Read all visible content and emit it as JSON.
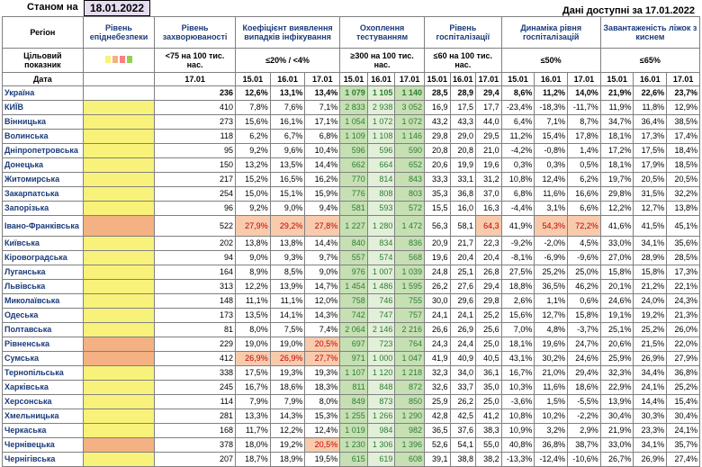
{
  "header": {
    "as_of_label": "Станом на",
    "as_of_date": "18.01.2022",
    "available_label": "Дані доступні за",
    "available_date": "17.01.2022"
  },
  "columns": {
    "region": "Регіон",
    "level": "Рівень епіднебезпеки",
    "incidence": "Рівень захворюваності",
    "positivity": "Коефіцієнт виявлення випадків інфікування",
    "testing": "Охоплення тестуванням",
    "hosp": "Рівень госпіталізації",
    "hosp_dyn": "Динаміка рівня госпіталізацій",
    "oxygen": "Завантаженість ліжок з киснем"
  },
  "targets": {
    "label": "Цільовий показник",
    "incidence": "<75 на 100 тис. нас.",
    "positivity": "≤20% / <4%",
    "testing": "≥300 на 100 тис. нас.",
    "hosp": "≤60 на 100 тис. нас.",
    "hosp_dyn": "≤50%",
    "oxygen": "≤65%"
  },
  "dates": {
    "label": "Дата",
    "incidence": "17.01",
    "d1": "15.01",
    "d2": "16.01",
    "d3": "17.01"
  },
  "legend_colors": [
    "#f8f27a",
    "#f4b183",
    "#ff7f7f",
    "#92d050"
  ],
  "rows": [
    {
      "region": "Україна",
      "level": "",
      "inc": "236",
      "pos": [
        "12,6%",
        "13,1%",
        "13,4%"
      ],
      "test": [
        "1 079",
        "1 105",
        "1 140"
      ],
      "hosp": [
        "28,5",
        "28,9",
        "29,4"
      ],
      "dyn": [
        "8,6%",
        "11,2%",
        "14,0%"
      ],
      "oxy": [
        "21,9%",
        "22,6%",
        "23,7%"
      ]
    },
    {
      "region": "КИЇВ",
      "level": "yellow",
      "inc": "410",
      "pos": [
        "7,8%",
        "7,6%",
        "7,1%"
      ],
      "test": [
        "2 833",
        "2 938",
        "3 052"
      ],
      "hosp": [
        "16,9",
        "17,5",
        "17,7"
      ],
      "dyn": [
        "-23,4%",
        "-18,3%",
        "-11,7%"
      ],
      "oxy": [
        "11,9%",
        "11,8%",
        "12,9%"
      ]
    },
    {
      "region": "Вінницька",
      "level": "yellow",
      "inc": "273",
      "pos": [
        "15,6%",
        "16,1%",
        "17,1%"
      ],
      "test": [
        "1 054",
        "1 072",
        "1 072"
      ],
      "hosp": [
        "43,2",
        "43,3",
        "44,0"
      ],
      "dyn": [
        "6,4%",
        "7,1%",
        "8,7%"
      ],
      "oxy": [
        "34,7%",
        "36,4%",
        "38,5%"
      ]
    },
    {
      "region": "Волинська",
      "level": "yellow",
      "inc": "118",
      "pos": [
        "6,2%",
        "6,7%",
        "6,8%"
      ],
      "test": [
        "1 109",
        "1 108",
        "1 146"
      ],
      "hosp": [
        "29,8",
        "29,0",
        "29,5"
      ],
      "dyn": [
        "11,2%",
        "15,4%",
        "17,8%"
      ],
      "oxy": [
        "18,1%",
        "17,3%",
        "17,4%"
      ]
    },
    {
      "region": "Дніпропетровська",
      "level": "yellow",
      "inc": "95",
      "pos": [
        "9,2%",
        "9,6%",
        "10,4%"
      ],
      "test": [
        "596",
        "596",
        "590"
      ],
      "hosp": [
        "20,8",
        "20,8",
        "21,0"
      ],
      "dyn": [
        "-4,2%",
        "-0,8%",
        "1,4%"
      ],
      "oxy": [
        "17,2%",
        "17,5%",
        "18,4%"
      ]
    },
    {
      "region": "Донецька",
      "level": "yellow",
      "inc": "150",
      "pos": [
        "13,2%",
        "13,5%",
        "14,4%"
      ],
      "test": [
        "662",
        "664",
        "652"
      ],
      "hosp": [
        "20,6",
        "19,9",
        "19,6"
      ],
      "dyn": [
        "0,3%",
        "0,3%",
        "0,5%"
      ],
      "oxy": [
        "18,1%",
        "17,9%",
        "18,5%"
      ]
    },
    {
      "region": "Житомирська",
      "level": "yellow",
      "inc": "217",
      "pos": [
        "15,2%",
        "16,5%",
        "16,2%"
      ],
      "test": [
        "770",
        "814",
        "843"
      ],
      "hosp": [
        "33,3",
        "33,1",
        "31,2"
      ],
      "dyn": [
        "10,8%",
        "12,4%",
        "6,2%"
      ],
      "oxy": [
        "19,7%",
        "20,5%",
        "20,5%"
      ]
    },
    {
      "region": "Закарпатська",
      "level": "yellow",
      "inc": "254",
      "pos": [
        "15,0%",
        "15,1%",
        "15,9%"
      ],
      "test": [
        "776",
        "808",
        "803"
      ],
      "hosp": [
        "35,3",
        "36,8",
        "37,0"
      ],
      "dyn": [
        "6,8%",
        "11,6%",
        "16,6%"
      ],
      "oxy": [
        "29,8%",
        "31,5%",
        "32,2%"
      ]
    },
    {
      "region": "Запорізька",
      "level": "yellow",
      "inc": "96",
      "pos": [
        "9,2%",
        "9,0%",
        "9,4%"
      ],
      "test": [
        "581",
        "593",
        "572"
      ],
      "hosp": [
        "15,5",
        "16,0",
        "16,3"
      ],
      "dyn": [
        "-4,4%",
        "3,1%",
        "6,6%"
      ],
      "oxy": [
        "12,2%",
        "12,7%",
        "13,8%"
      ]
    },
    {
      "region": "Івано-Франківська",
      "level": "orange",
      "inc": "522",
      "pos": [
        "27,9%",
        "29,2%",
        "27,8%"
      ],
      "posHi": [
        true,
        true,
        true
      ],
      "test": [
        "1 227",
        "1 280",
        "1 472"
      ],
      "hosp": [
        "56,3",
        "58,1",
        "64,3"
      ],
      "hospHi": [
        false,
        false,
        true
      ],
      "dyn": [
        "41,9%",
        "54,3%",
        "72,2%"
      ],
      "dynHi": [
        false,
        true,
        true
      ],
      "oxy": [
        "41,6%",
        "41,5%",
        "45,1%"
      ],
      "tall": true
    },
    {
      "region": "Київська",
      "level": "yellow",
      "inc": "202",
      "pos": [
        "13,8%",
        "13,8%",
        "14,4%"
      ],
      "test": [
        "840",
        "834",
        "836"
      ],
      "hosp": [
        "20,9",
        "21,7",
        "22,3"
      ],
      "dyn": [
        "-9,2%",
        "-2,0%",
        "4,5%"
      ],
      "oxy": [
        "33,0%",
        "34,1%",
        "35,6%"
      ]
    },
    {
      "region": "Кіровоградська",
      "level": "yellow",
      "inc": "94",
      "pos": [
        "9,0%",
        "9,3%",
        "9,7%"
      ],
      "test": [
        "557",
        "574",
        "568"
      ],
      "hosp": [
        "19,6",
        "20,4",
        "20,4"
      ],
      "dyn": [
        "-8,1%",
        "-6,9%",
        "-9,6%"
      ],
      "oxy": [
        "27,0%",
        "28,9%",
        "28,5%"
      ]
    },
    {
      "region": "Луганська",
      "level": "yellow",
      "inc": "164",
      "pos": [
        "8,9%",
        "8,5%",
        "9,0%"
      ],
      "test": [
        "976",
        "1 007",
        "1 039"
      ],
      "hosp": [
        "24,8",
        "25,1",
        "26,8"
      ],
      "dyn": [
        "27,5%",
        "25,2%",
        "25,0%"
      ],
      "oxy": [
        "15,8%",
        "15,8%",
        "17,3%"
      ]
    },
    {
      "region": "Львівська",
      "level": "yellow",
      "inc": "313",
      "pos": [
        "12,2%",
        "13,9%",
        "14,7%"
      ],
      "test": [
        "1 454",
        "1 486",
        "1 595"
      ],
      "hosp": [
        "26,2",
        "27,6",
        "29,4"
      ],
      "dyn": [
        "18,8%",
        "36,5%",
        "46,2%"
      ],
      "oxy": [
        "20,1%",
        "21,2%",
        "22,1%"
      ]
    },
    {
      "region": "Миколаївська",
      "level": "yellow",
      "inc": "148",
      "pos": [
        "11,1%",
        "11,1%",
        "12,0%"
      ],
      "test": [
        "758",
        "746",
        "755"
      ],
      "hosp": [
        "30,0",
        "29,6",
        "29,8"
      ],
      "dyn": [
        "2,6%",
        "1,1%",
        "0,6%"
      ],
      "oxy": [
        "24,6%",
        "24,0%",
        "24,3%"
      ]
    },
    {
      "region": "Одеська",
      "level": "yellow",
      "inc": "173",
      "pos": [
        "13,5%",
        "14,1%",
        "14,3%"
      ],
      "test": [
        "742",
        "747",
        "757"
      ],
      "hosp": [
        "24,1",
        "24,1",
        "25,2"
      ],
      "dyn": [
        "15,6%",
        "12,7%",
        "15,8%"
      ],
      "oxy": [
        "19,1%",
        "19,2%",
        "21,3%"
      ]
    },
    {
      "region": "Полтавська",
      "level": "yellow",
      "inc": "81",
      "pos": [
        "8,0%",
        "7,5%",
        "7,4%"
      ],
      "test": [
        "2 064",
        "2 146",
        "2 216"
      ],
      "hosp": [
        "26,6",
        "26,9",
        "25,6"
      ],
      "dyn": [
        "7,0%",
        "4,8%",
        "-3,7%"
      ],
      "oxy": [
        "25,1%",
        "25,2%",
        "26,0%"
      ]
    },
    {
      "region": "Рівненська",
      "level": "orange",
      "inc": "229",
      "pos": [
        "19,0%",
        "19,0%",
        "20,5%"
      ],
      "posHi": [
        false,
        false,
        true
      ],
      "test": [
        "697",
        "723",
        "764"
      ],
      "hosp": [
        "24,3",
        "24,4",
        "25,0"
      ],
      "dyn": [
        "18,1%",
        "19,6%",
        "24,7%"
      ],
      "oxy": [
        "20,6%",
        "21,5%",
        "22,0%"
      ]
    },
    {
      "region": "Сумська",
      "level": "orange",
      "inc": "412",
      "pos": [
        "26,9%",
        "26,9%",
        "27,7%"
      ],
      "posHi": [
        true,
        true,
        true
      ],
      "test": [
        "971",
        "1 000",
        "1 047"
      ],
      "hosp": [
        "41,9",
        "40,9",
        "40,5"
      ],
      "dyn": [
        "43,1%",
        "30,2%",
        "24,6%"
      ],
      "oxy": [
        "25,9%",
        "26,9%",
        "27,9%"
      ]
    },
    {
      "region": "Тернопільська",
      "level": "yellow",
      "inc": "338",
      "pos": [
        "17,5%",
        "19,3%",
        "19,3%"
      ],
      "test": [
        "1 107",
        "1 120",
        "1 218"
      ],
      "hosp": [
        "32,3",
        "34,0",
        "36,1"
      ],
      "dyn": [
        "16,7%",
        "21,0%",
        "29,4%"
      ],
      "oxy": [
        "32,3%",
        "34,4%",
        "36,8%"
      ]
    },
    {
      "region": "Харківська",
      "level": "yellow",
      "inc": "245",
      "pos": [
        "16,7%",
        "18,6%",
        "18,3%"
      ],
      "test": [
        "811",
        "848",
        "872"
      ],
      "hosp": [
        "32,6",
        "33,7",
        "35,0"
      ],
      "dyn": [
        "10,3%",
        "11,6%",
        "18,6%"
      ],
      "oxy": [
        "22,9%",
        "24,1%",
        "25,2%"
      ]
    },
    {
      "region": "Херсонська",
      "level": "yellow",
      "inc": "114",
      "pos": [
        "7,9%",
        "7,9%",
        "8,0%"
      ],
      "test": [
        "849",
        "873",
        "850"
      ],
      "hosp": [
        "25,9",
        "26,2",
        "25,0"
      ],
      "dyn": [
        "-3,6%",
        "1,5%",
        "-5,5%"
      ],
      "oxy": [
        "13,9%",
        "14,4%",
        "15,4%"
      ]
    },
    {
      "region": "Хмельницька",
      "level": "yellow",
      "inc": "281",
      "pos": [
        "13,3%",
        "14,3%",
        "15,3%"
      ],
      "test": [
        "1 255",
        "1 266",
        "1 290"
      ],
      "hosp": [
        "42,8",
        "42,5",
        "41,2"
      ],
      "dyn": [
        "10,8%",
        "10,2%",
        "-2,2%"
      ],
      "oxy": [
        "30,4%",
        "30,3%",
        "30,4%"
      ]
    },
    {
      "region": "Черкаська",
      "level": "yellow",
      "inc": "168",
      "pos": [
        "11,7%",
        "12,2%",
        "12,4%"
      ],
      "test": [
        "1 019",
        "984",
        "982"
      ],
      "hosp": [
        "36,5",
        "37,6",
        "38,3"
      ],
      "dyn": [
        "10,9%",
        "3,2%",
        "2,9%"
      ],
      "oxy": [
        "21,9%",
        "23,3%",
        "24,1%"
      ]
    },
    {
      "region": "Чернівецька",
      "level": "orange",
      "inc": "378",
      "pos": [
        "18,0%",
        "19,2%",
        "20,5%"
      ],
      "posHi": [
        false,
        false,
        true
      ],
      "test": [
        "1 230",
        "1 306",
        "1 396"
      ],
      "hosp": [
        "52,6",
        "54,1",
        "55,0"
      ],
      "dyn": [
        "40,8%",
        "36,8%",
        "38,7%"
      ],
      "oxy": [
        "33,0%",
        "34,1%",
        "35,7%"
      ]
    },
    {
      "region": "Чернігівська",
      "level": "yellow",
      "inc": "207",
      "pos": [
        "18,7%",
        "18,9%",
        "19,5%"
      ],
      "test": [
        "615",
        "619",
        "608"
      ],
      "hosp": [
        "39,1",
        "38,8",
        "38,2"
      ],
      "dyn": [
        "-13,3%",
        "-12,4%",
        "-10,6%"
      ],
      "oxy": [
        "26,7%",
        "26,9%",
        "27,4%"
      ]
    }
  ]
}
